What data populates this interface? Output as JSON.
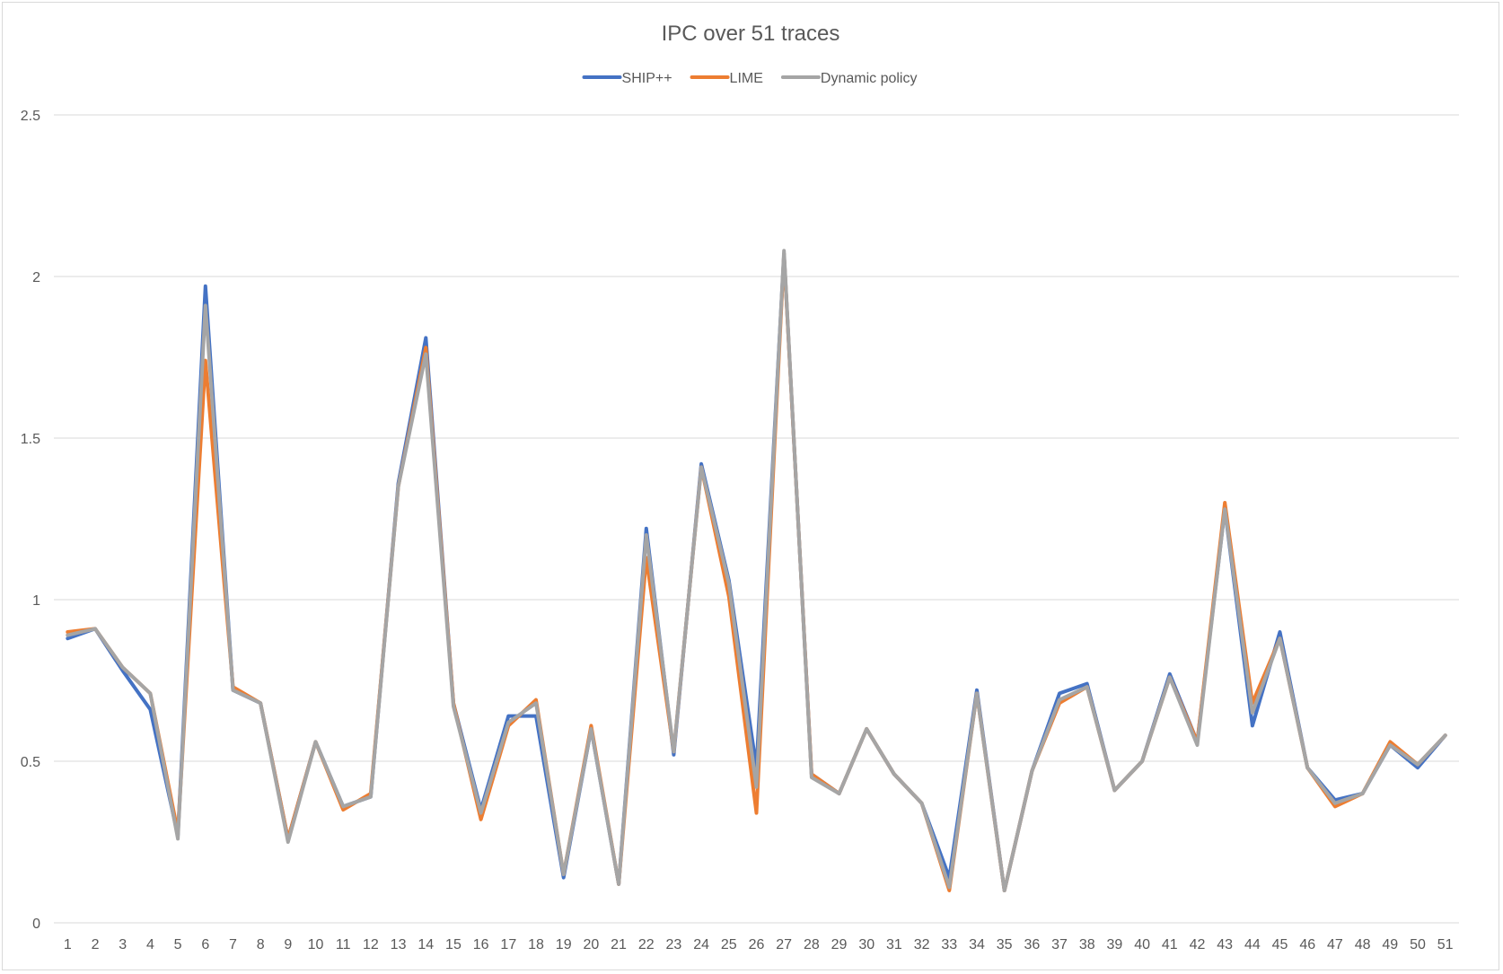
{
  "chart_data": {
    "type": "line",
    "title": "IPC over 51 traces",
    "xlabel": "",
    "ylabel": "",
    "ylim": [
      0,
      2.5
    ],
    "yticks": [
      "0",
      "0.5",
      "1",
      "1.5",
      "2",
      "2.5"
    ],
    "grid": true,
    "legend_position": "top",
    "categories": [
      "1",
      "2",
      "3",
      "4",
      "5",
      "6",
      "7",
      "8",
      "9",
      "10",
      "11",
      "12",
      "13",
      "14",
      "15",
      "16",
      "17",
      "18",
      "19",
      "20",
      "21",
      "22",
      "23",
      "24",
      "25",
      "26",
      "27",
      "28",
      "29",
      "30",
      "31",
      "32",
      "33",
      "34",
      "35",
      "36",
      "37",
      "38",
      "39",
      "40",
      "41",
      "42",
      "43",
      "44",
      "45",
      "46",
      "47",
      "48",
      "49",
      "50",
      "51"
    ],
    "series": [
      {
        "name": "SHIP++",
        "color": "#4472c4",
        "values": [
          0.88,
          0.91,
          0.78,
          0.66,
          0.27,
          1.97,
          0.72,
          0.68,
          0.26,
          0.56,
          0.36,
          0.39,
          1.36,
          1.81,
          0.68,
          0.35,
          0.64,
          0.64,
          0.14,
          0.6,
          0.12,
          1.22,
          0.52,
          1.42,
          1.06,
          0.48,
          2.07,
          0.46,
          0.4,
          0.6,
          0.46,
          0.37,
          0.14,
          0.72,
          0.1,
          0.47,
          0.71,
          0.74,
          0.41,
          0.5,
          0.77,
          0.56,
          1.28,
          0.61,
          0.9,
          0.48,
          0.38,
          0.4,
          0.55,
          0.48,
          0.58
        ]
      },
      {
        "name": "LIME",
        "color": "#ed7d31",
        "values": [
          0.9,
          0.91,
          0.79,
          0.71,
          0.28,
          1.74,
          0.73,
          0.68,
          0.26,
          0.56,
          0.35,
          0.4,
          1.35,
          1.78,
          0.68,
          0.32,
          0.61,
          0.69,
          0.15,
          0.61,
          0.12,
          1.13,
          0.53,
          1.41,
          1.01,
          0.34,
          2.07,
          0.46,
          0.4,
          0.6,
          0.46,
          0.37,
          0.1,
          0.71,
          0.1,
          0.47,
          0.68,
          0.73,
          0.41,
          0.5,
          0.76,
          0.56,
          1.3,
          0.68,
          0.88,
          0.48,
          0.36,
          0.4,
          0.56,
          0.49,
          0.58
        ]
      },
      {
        "name": "Dynamic policy",
        "color": "#a5a5a5",
        "values": [
          0.89,
          0.91,
          0.79,
          0.71,
          0.26,
          1.91,
          0.72,
          0.68,
          0.25,
          0.56,
          0.36,
          0.39,
          1.35,
          1.76,
          0.67,
          0.34,
          0.62,
          0.68,
          0.15,
          0.6,
          0.12,
          1.2,
          0.53,
          1.41,
          1.05,
          0.42,
          2.08,
          0.45,
          0.4,
          0.6,
          0.46,
          0.37,
          0.11,
          0.71,
          0.1,
          0.47,
          0.69,
          0.73,
          0.41,
          0.5,
          0.76,
          0.55,
          1.28,
          0.65,
          0.88,
          0.48,
          0.37,
          0.4,
          0.55,
          0.49,
          0.58
        ]
      }
    ]
  }
}
